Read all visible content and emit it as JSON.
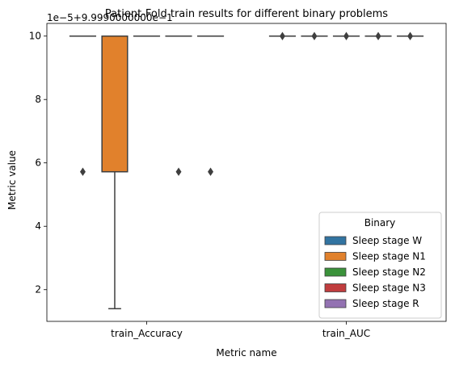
{
  "chart_data": {
    "type": "box",
    "title": "Patient-Fold train results for different binary problems",
    "offset_label": "1e−5+9.9990000000e−1",
    "xlabel": "Metric name",
    "ylabel": "Metric value",
    "ylim": [
      1.0,
      10.4
    ],
    "yticks": [
      2,
      4,
      6,
      8,
      10
    ],
    "grid": false,
    "categories": [
      "train_Accuracy",
      "train_AUC"
    ],
    "legend": {
      "title": "Binary",
      "placement": "lower-right"
    },
    "series": [
      {
        "name": "Sleep stage W",
        "color": "#3274a1",
        "boxes": [
          {
            "q1": 10,
            "median": 10,
            "q3": 10,
            "whisker_low": 10,
            "whisker_high": 10,
            "outliers": [
              5.72
            ]
          },
          {
            "q1": 10,
            "median": 10,
            "q3": 10,
            "whisker_low": 10,
            "whisker_high": 10,
            "outliers": [
              10
            ]
          }
        ]
      },
      {
        "name": "Sleep stage N1",
        "color": "#e1812c",
        "boxes": [
          {
            "q1": 5.72,
            "median": 5.72,
            "q3": 10,
            "whisker_low": 1.4,
            "whisker_high": 10,
            "outliers": []
          },
          {
            "q1": 10,
            "median": 10,
            "q3": 10,
            "whisker_low": 10,
            "whisker_high": 10,
            "outliers": [
              10
            ]
          }
        ]
      },
      {
        "name": "Sleep stage N2",
        "color": "#3a923a",
        "boxes": [
          {
            "q1": 10,
            "median": 10,
            "q3": 10,
            "whisker_low": 10,
            "whisker_high": 10,
            "outliers": []
          },
          {
            "q1": 10,
            "median": 10,
            "q3": 10,
            "whisker_low": 10,
            "whisker_high": 10,
            "outliers": [
              10
            ]
          }
        ]
      },
      {
        "name": "Sleep stage N3",
        "color": "#c03d3e",
        "boxes": [
          {
            "q1": 10,
            "median": 10,
            "q3": 10,
            "whisker_low": 10,
            "whisker_high": 10,
            "outliers": [
              5.72
            ]
          },
          {
            "q1": 10,
            "median": 10,
            "q3": 10,
            "whisker_low": 10,
            "whisker_high": 10,
            "outliers": [
              10
            ]
          }
        ]
      },
      {
        "name": "Sleep stage R",
        "color": "#9372b2",
        "boxes": [
          {
            "q1": 10,
            "median": 10,
            "q3": 10,
            "whisker_low": 10,
            "whisker_high": 10,
            "outliers": [
              5.72
            ]
          },
          {
            "q1": 10,
            "median": 10,
            "q3": 10,
            "whisker_low": 10,
            "whisker_high": 10,
            "outliers": [
              10
            ]
          }
        ]
      }
    ]
  }
}
